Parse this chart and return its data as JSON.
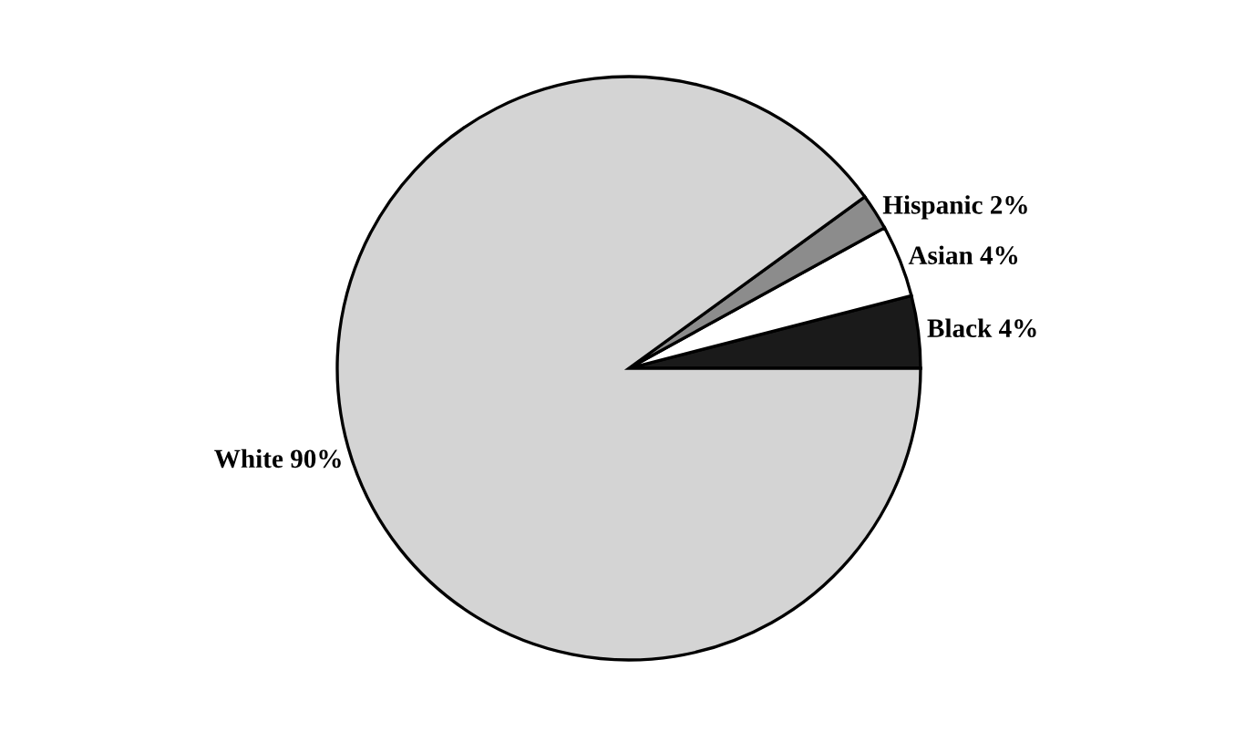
{
  "chart_data": {
    "type": "pie",
    "categories": [
      "Black 4%",
      "Asian 4%",
      "Hispanic 2%",
      "White 90%"
    ],
    "values": [
      4,
      4,
      2,
      90
    ],
    "colors": [
      "#1a1a1a",
      "#ffffff",
      "#8c8c8c",
      "#d4d4d4"
    ]
  }
}
